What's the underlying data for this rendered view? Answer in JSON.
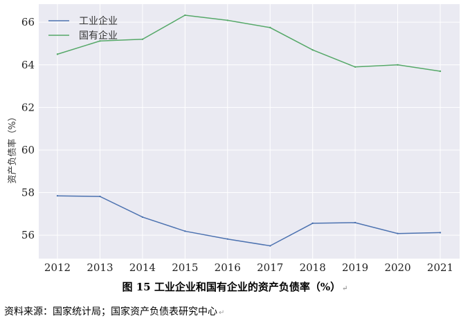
{
  "chart_data": {
    "type": "line",
    "categories": [
      "2012",
      "2013",
      "2014",
      "2015",
      "2016",
      "2017",
      "2018",
      "2019",
      "2020",
      "2021"
    ],
    "series": [
      {
        "name": "工业企业",
        "color": "#4c72b0",
        "values": [
          57.85,
          57.82,
          56.85,
          56.19,
          55.82,
          55.5,
          56.56,
          56.59,
          56.08,
          56.12
        ]
      },
      {
        "name": "国有企业",
        "color": "#55a868",
        "values": [
          64.5,
          65.12,
          65.2,
          66.33,
          66.09,
          65.75,
          64.7,
          63.9,
          64.0,
          63.7
        ]
      }
    ],
    "ylabel": "资产负债率（%）",
    "yticks": [
      56,
      58,
      60,
      62,
      64,
      66
    ],
    "ylim": [
      54.9,
      66.85
    ],
    "grid": true,
    "legend": "top-left",
    "background": "#eaeaf2"
  },
  "caption": {
    "text": "图 15  工业企业和国有企业的资产负债率（%）",
    "mark": "↵"
  },
  "source": {
    "text": "资料来源：国家统计局；国家资产负债表研究中心",
    "mark": "↵"
  }
}
